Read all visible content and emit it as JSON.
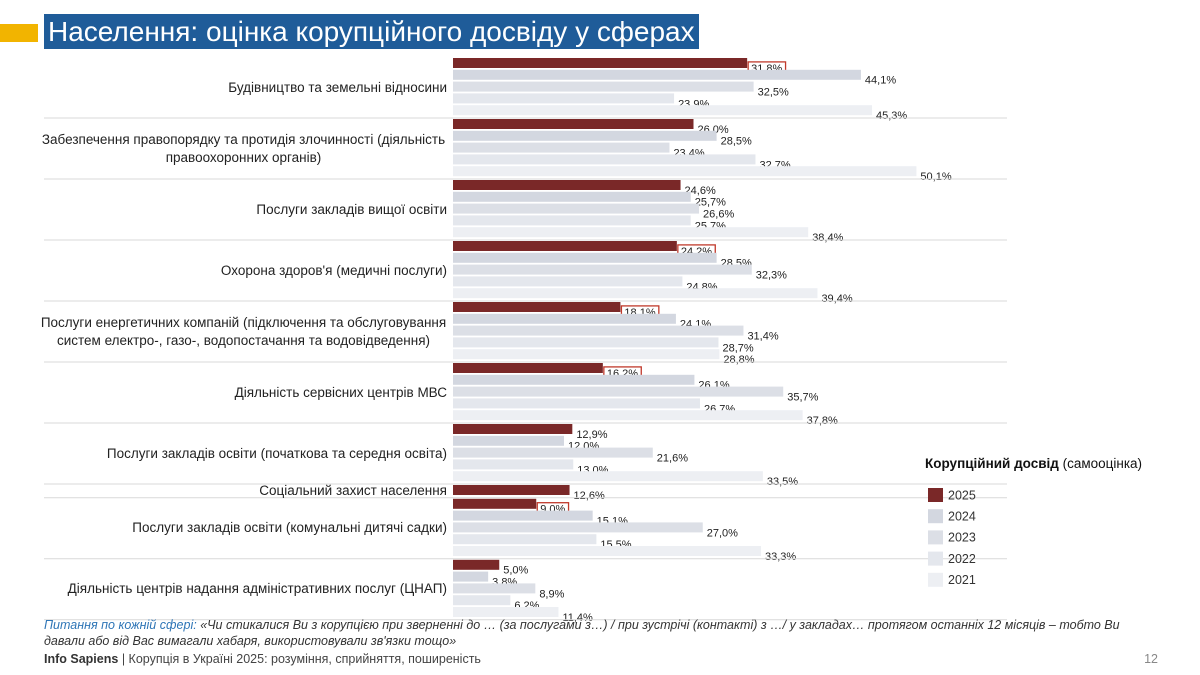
{
  "chart_data": {
    "type": "bar",
    "orientation": "horizontal",
    "title": "Населення: оцінка корупційного досвіду у сферах",
    "categories": [
      "Будівництво та земельні відносини",
      "Забезпечення правопорядку та протидія злочинності (діяльність правоохоронних органів)",
      "Послуги закладів вищої освіти",
      "Охорона здоров'я (медичні послуги)",
      "Послуги енергетичних компаній (підключення та обслуговування систем електро-, газо-, водопостачання та водовідведення)",
      "Діяльність сервісних центрів МВС",
      "Послуги закладів освіти (початкова та середня освіта)",
      "Соціальний захист населення",
      "Послуги закладів освіти (комунальні дитячі садки)",
      "Діяльність центрів надання адміністративних послуг (ЦНАП)"
    ],
    "series": [
      {
        "name": "2025",
        "color": "#7a2828",
        "values": [
          31.8,
          26.0,
          24.6,
          24.2,
          18.1,
          16.2,
          12.9,
          12.6,
          9.0,
          5.0
        ],
        "value_labels": [
          "31,8%",
          "26,0%",
          "24,6%",
          "24,2%",
          "18,1%",
          "16,2%",
          "12,9%",
          "12,6%",
          "9,0%",
          "5,0%"
        ],
        "boxed_labels": [
          true,
          false,
          false,
          true,
          true,
          true,
          false,
          false,
          true,
          false
        ]
      },
      {
        "name": "2024",
        "color": "#d3d7e0",
        "values": [
          44.1,
          28.5,
          25.7,
          28.5,
          24.1,
          26.1,
          12.0,
          null,
          15.1,
          3.8
        ],
        "value_labels": [
          "44,1%",
          "28,5%",
          "25,7%",
          "28,5%",
          "24,1%",
          "26,1%",
          "12,0%",
          null,
          "15,1%",
          "3,8%"
        ]
      },
      {
        "name": "2023",
        "color": "#dcdfe6",
        "values": [
          32.5,
          23.4,
          26.6,
          32.3,
          31.4,
          35.7,
          21.6,
          null,
          27.0,
          8.9
        ],
        "value_labels": [
          "32,5%",
          "23,4%",
          "26,6%",
          "32,3%",
          "31,4%",
          "35,7%",
          "21,6%",
          null,
          "27,0%",
          "8,9%"
        ]
      },
      {
        "name": "2022",
        "color": "#e4e7ed",
        "values": [
          23.9,
          32.7,
          25.7,
          24.8,
          28.7,
          26.7,
          13.0,
          null,
          15.5,
          6.2
        ],
        "value_labels": [
          "23,9%",
          "32,7%",
          "25,7%",
          "24,8%",
          "28,7%",
          "26,7%",
          "13,0%",
          null,
          "15,5%",
          "6,2%"
        ]
      },
      {
        "name": "2021",
        "color": "#edeff3",
        "values": [
          45.3,
          50.1,
          38.4,
          39.4,
          28.8,
          37.8,
          33.5,
          null,
          33.3,
          11.4
        ],
        "value_labels": [
          "45,3%",
          "50,1%",
          "38,4%",
          "39,4%",
          "28,8%",
          "37,8%",
          "33,5%",
          null,
          "33,3%",
          "11,4%"
        ]
      }
    ],
    "legend_title": "Корупційний досвід",
    "legend_subtitle": "(самооцінка)"
  },
  "footnote_label": "Питання по кожній сфері:",
  "footnote": "«Чи стикалися Ви з корупцією при зверненні до … (за послугами з…) / при зустрічі (контакті) з …/ у закладах… протягом останніх 12 місяців – тобто Ви давали або від Вас вимагали хабаря, використовували зв'язки тощо»",
  "footer_brand": "Info Sapiens",
  "footer": "| Корупція в Україні 2025: розуміння, сприйняття, поширеність",
  "page_number": "12"
}
